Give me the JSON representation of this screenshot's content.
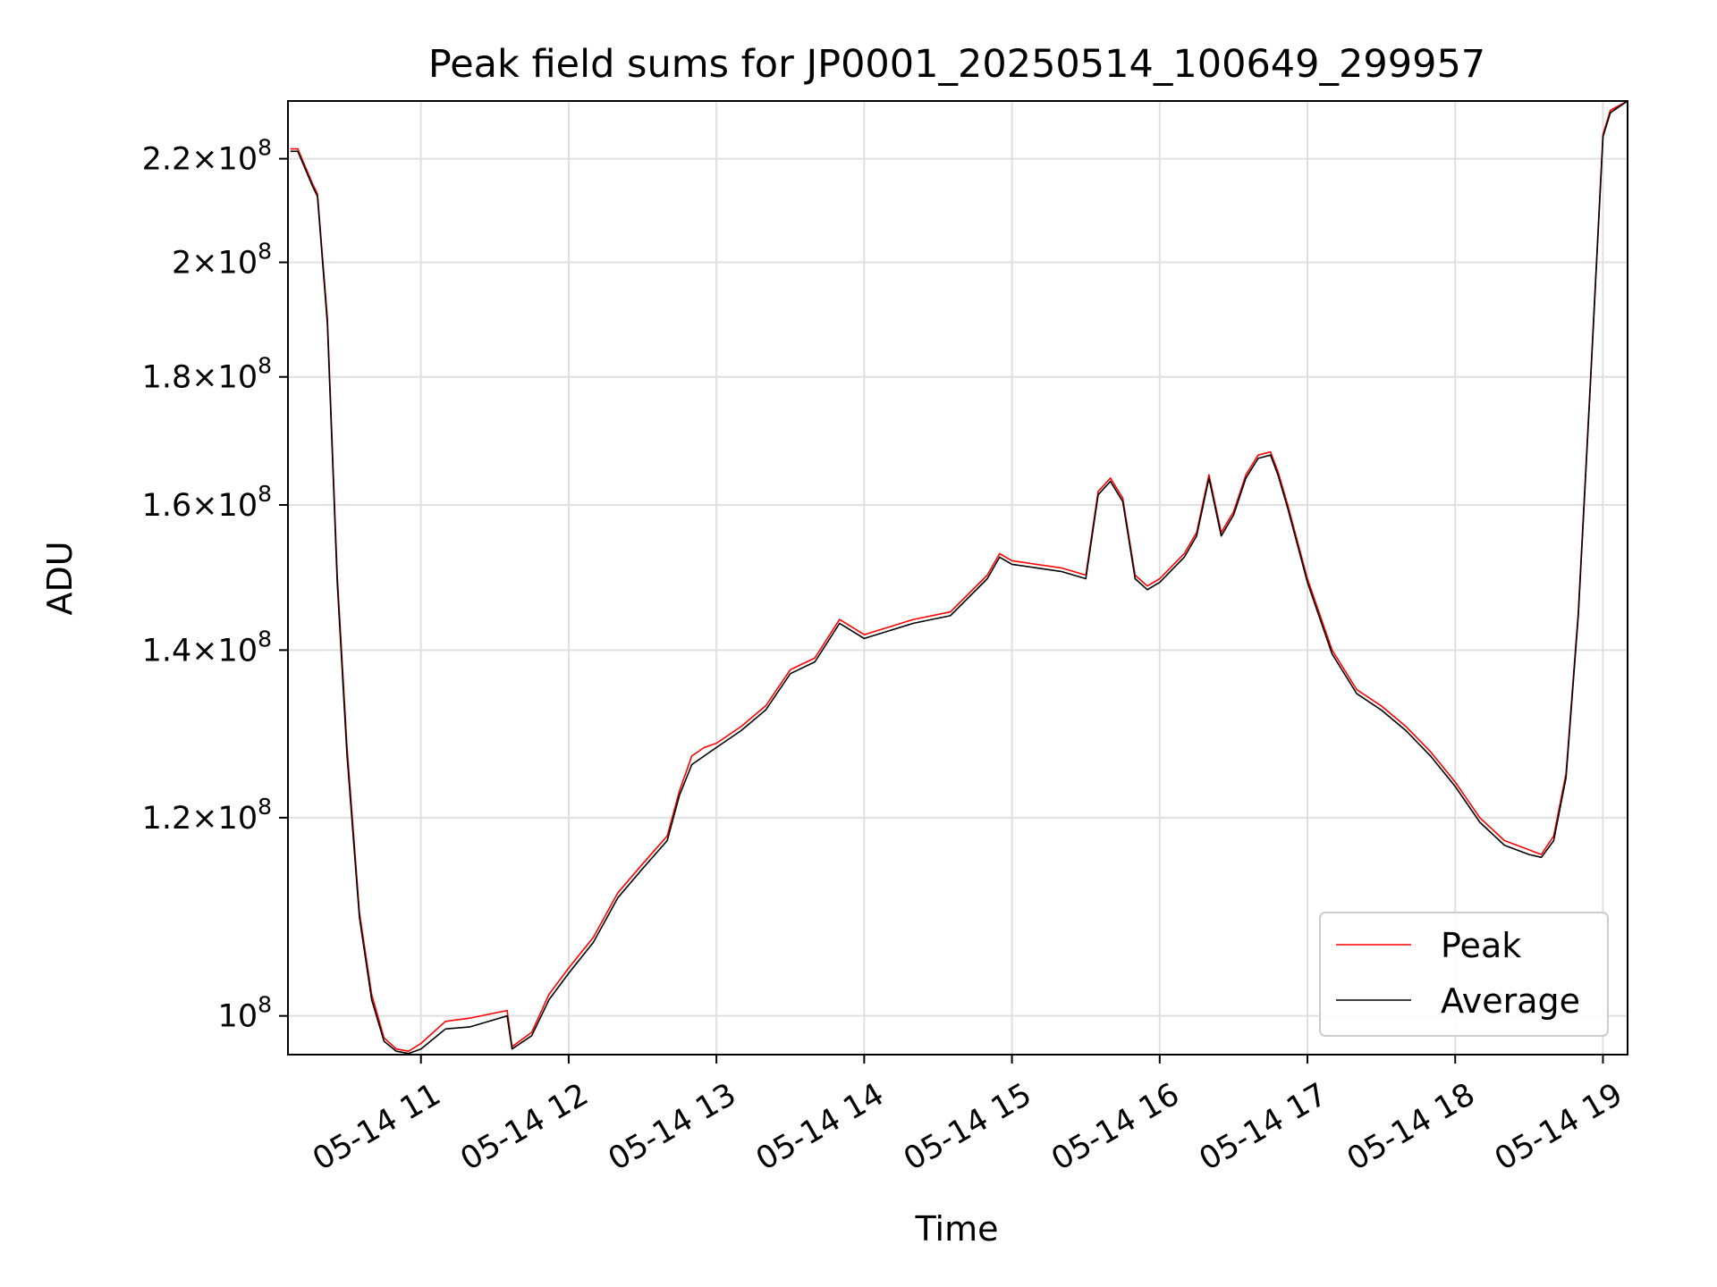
{
  "chart_data": {
    "type": "line",
    "title": "Peak field sums for JP0001_20250514_100649_299957",
    "xlabel": "Time",
    "ylabel": "ADU",
    "y_scale": "log",
    "xlim": [
      "2025-05-14 10:06",
      "2025-05-14 19:10"
    ],
    "ylim": [
      96500000,
      232000000
    ],
    "grid": true,
    "legend_position": "lower-right",
    "x_ticks": [
      {
        "value": "2025-05-14 11:00",
        "label": "05-14 11"
      },
      {
        "value": "2025-05-14 12:00",
        "label": "05-14 12"
      },
      {
        "value": "2025-05-14 13:00",
        "label": "05-14 13"
      },
      {
        "value": "2025-05-14 14:00",
        "label": "05-14 14"
      },
      {
        "value": "2025-05-14 15:00",
        "label": "05-14 15"
      },
      {
        "value": "2025-05-14 16:00",
        "label": "05-14 16"
      },
      {
        "value": "2025-05-14 17:00",
        "label": "05-14 17"
      },
      {
        "value": "2025-05-14 18:00",
        "label": "05-14 18"
      },
      {
        "value": "2025-05-14 19:00",
        "label": "05-14 19"
      }
    ],
    "y_ticks": [
      {
        "value": 100000000,
        "mantissa": "",
        "exponent": "8"
      },
      {
        "value": 120000000,
        "mantissa": "1.2",
        "exponent": "8"
      },
      {
        "value": 140000000,
        "mantissa": "1.4",
        "exponent": "8"
      },
      {
        "value": 160000000,
        "mantissa": "1.6",
        "exponent": "8"
      },
      {
        "value": 180000000,
        "mantissa": "1.8",
        "exponent": "8"
      },
      {
        "value": 200000000,
        "mantissa": "2",
        "exponent": "8"
      },
      {
        "value": 220000000,
        "mantissa": "2.2",
        "exponent": "8"
      }
    ],
    "series": [
      {
        "name": "Peak",
        "color": "#ff0000",
        "x": [
          "2025-05-14 10:07",
          "2025-05-14 10:10",
          "2025-05-14 10:16",
          "2025-05-14 10:18",
          "2025-05-14 10:22",
          "2025-05-14 10:26",
          "2025-05-14 10:30",
          "2025-05-14 10:35",
          "2025-05-14 10:40",
          "2025-05-14 10:45",
          "2025-05-14 10:50",
          "2025-05-14 10:55",
          "2025-05-14 11:00",
          "2025-05-14 11:10",
          "2025-05-14 11:20",
          "2025-05-14 11:35",
          "2025-05-14 11:37",
          "2025-05-14 11:45",
          "2025-05-14 11:52",
          "2025-05-14 12:00",
          "2025-05-14 12:10",
          "2025-05-14 12:20",
          "2025-05-14 12:30",
          "2025-05-14 12:40",
          "2025-05-14 12:45",
          "2025-05-14 12:50",
          "2025-05-14 12:55",
          "2025-05-14 13:00",
          "2025-05-14 13:10",
          "2025-05-14 13:20",
          "2025-05-14 13:30",
          "2025-05-14 13:40",
          "2025-05-14 13:50",
          "2025-05-14 14:00",
          "2025-05-14 14:10",
          "2025-05-14 14:20",
          "2025-05-14 14:35",
          "2025-05-14 14:50",
          "2025-05-14 14:55",
          "2025-05-14 15:00",
          "2025-05-14 15:10",
          "2025-05-14 15:20",
          "2025-05-14 15:30",
          "2025-05-14 15:35",
          "2025-05-14 15:40",
          "2025-05-14 15:45",
          "2025-05-14 15:50",
          "2025-05-14 15:55",
          "2025-05-14 16:00",
          "2025-05-14 16:10",
          "2025-05-14 16:15",
          "2025-05-14 16:20",
          "2025-05-14 16:25",
          "2025-05-14 16:30",
          "2025-05-14 16:35",
          "2025-05-14 16:40",
          "2025-05-14 16:45",
          "2025-05-14 16:48",
          "2025-05-14 16:52",
          "2025-05-14 17:00",
          "2025-05-14 17:10",
          "2025-05-14 17:20",
          "2025-05-14 17:30",
          "2025-05-14 17:40",
          "2025-05-14 17:50",
          "2025-05-14 18:00",
          "2025-05-14 18:10",
          "2025-05-14 18:20",
          "2025-05-14 18:30",
          "2025-05-14 18:35",
          "2025-05-14 18:40",
          "2025-05-14 18:45",
          "2025-05-14 18:50",
          "2025-05-14 18:55",
          "2025-05-14 19:00",
          "2025-05-14 19:03",
          "2025-05-14 19:10"
        ],
        "y": [
          222000000,
          222000000,
          215000000,
          213000000,
          190000000,
          150000000,
          128000000,
          110000000,
          102000000,
          98000000,
          97000000,
          96800000,
          97500000,
          99500000,
          99800000,
          100500000,
          97200000,
          98500000,
          102000000,
          104500000,
          107500000,
          112000000,
          115000000,
          118000000,
          123000000,
          127000000,
          128000000,
          128500000,
          130500000,
          133000000,
          137500000,
          139000000,
          144000000,
          142000000,
          143000000,
          144000000,
          145000000,
          150000000,
          153000000,
          152000000,
          151500000,
          151000000,
          150000000,
          162000000,
          164000000,
          161000000,
          150000000,
          148500000,
          149500000,
          153000000,
          156000000,
          164500000,
          156000000,
          159000000,
          164500000,
          167500000,
          168000000,
          165000000,
          160000000,
          149500000,
          140000000,
          135000000,
          133000000,
          130500000,
          127500000,
          124000000,
          120000000,
          117500000,
          116500000,
          116000000,
          118000000,
          125000000,
          145000000,
          180000000,
          225000000,
          230000000,
          232000000
        ]
      },
      {
        "name": "Average",
        "color": "#000000",
        "x": [
          "2025-05-14 10:07",
          "2025-05-14 10:10",
          "2025-05-14 10:16",
          "2025-05-14 10:18",
          "2025-05-14 10:22",
          "2025-05-14 10:26",
          "2025-05-14 10:30",
          "2025-05-14 10:35",
          "2025-05-14 10:40",
          "2025-05-14 10:45",
          "2025-05-14 10:50",
          "2025-05-14 10:55",
          "2025-05-14 11:00",
          "2025-05-14 11:10",
          "2025-05-14 11:20",
          "2025-05-14 11:35",
          "2025-05-14 11:37",
          "2025-05-14 11:45",
          "2025-05-14 11:52",
          "2025-05-14 12:00",
          "2025-05-14 12:10",
          "2025-05-14 12:20",
          "2025-05-14 12:30",
          "2025-05-14 12:40",
          "2025-05-14 12:45",
          "2025-05-14 12:50",
          "2025-05-14 12:55",
          "2025-05-14 13:00",
          "2025-05-14 13:10",
          "2025-05-14 13:20",
          "2025-05-14 13:30",
          "2025-05-14 13:40",
          "2025-05-14 13:50",
          "2025-05-14 14:00",
          "2025-05-14 14:10",
          "2025-05-14 14:20",
          "2025-05-14 14:35",
          "2025-05-14 14:50",
          "2025-05-14 14:55",
          "2025-05-14 15:00",
          "2025-05-14 15:10",
          "2025-05-14 15:20",
          "2025-05-14 15:30",
          "2025-05-14 15:35",
          "2025-05-14 15:40",
          "2025-05-14 15:45",
          "2025-05-14 15:50",
          "2025-05-14 15:55",
          "2025-05-14 16:00",
          "2025-05-14 16:10",
          "2025-05-14 16:15",
          "2025-05-14 16:20",
          "2025-05-14 16:25",
          "2025-05-14 16:30",
          "2025-05-14 16:35",
          "2025-05-14 16:40",
          "2025-05-14 16:45",
          "2025-05-14 16:48",
          "2025-05-14 16:52",
          "2025-05-14 17:00",
          "2025-05-14 17:10",
          "2025-05-14 17:20",
          "2025-05-14 17:30",
          "2025-05-14 17:40",
          "2025-05-14 17:50",
          "2025-05-14 18:00",
          "2025-05-14 18:10",
          "2025-05-14 18:20",
          "2025-05-14 18:30",
          "2025-05-14 18:35",
          "2025-05-14 18:40",
          "2025-05-14 18:45",
          "2025-05-14 18:50",
          "2025-05-14 18:55",
          "2025-05-14 19:00",
          "2025-05-14 19:03",
          "2025-05-14 19:10"
        ],
        "y": [
          221500000,
          221500000,
          214500000,
          212500000,
          189000000,
          149000000,
          127000000,
          109500000,
          101500000,
          97700000,
          96800000,
          96600000,
          97000000,
          98800000,
          99000000,
          100000000,
          97000000,
          98200000,
          101500000,
          104000000,
          107000000,
          111500000,
          114500000,
          117500000,
          122500000,
          126000000,
          127000000,
          128000000,
          130000000,
          132500000,
          137000000,
          138500000,
          143500000,
          141500000,
          142500000,
          143500000,
          144500000,
          149500000,
          152500000,
          151500000,
          151000000,
          150500000,
          149500000,
          161500000,
          163500000,
          160500000,
          149500000,
          148000000,
          149000000,
          152500000,
          155500000,
          164000000,
          155500000,
          158500000,
          164000000,
          167000000,
          167500000,
          164500000,
          159500000,
          149000000,
          139500000,
          134500000,
          132500000,
          130000000,
          127000000,
          123500000,
          119500000,
          117000000,
          116000000,
          115700000,
          117500000,
          124500000,
          144500000,
          179500000,
          224500000,
          229500000,
          232000000
        ]
      }
    ]
  }
}
